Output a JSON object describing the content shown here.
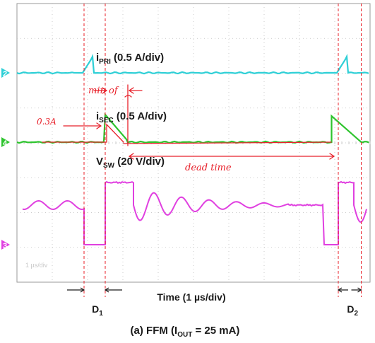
{
  "chart_data": {
    "type": "line",
    "title": "",
    "x_axis_label": "Time (1 µs/div)",
    "x_range_us": [
      0,
      10
    ],
    "grid": true,
    "screen_label": "1 µs/div",
    "channels": [
      {
        "marker": "2",
        "color": "#2ecfd6",
        "label_main": "i",
        "label_sub": "PRI",
        "label_scale": " (0.5 A/div)"
      },
      {
        "marker": "4",
        "color": "#2ec42e",
        "label_main": "i",
        "label_sub": "SEC",
        "label_scale": " (0.5 A/div)"
      },
      {
        "marker": "3",
        "color": "#e040e0",
        "label_main": "V",
        "label_sub": "SW",
        "label_scale": " (20 V/div)"
      }
    ],
    "intervals": [
      {
        "main": "D",
        "sub": "1",
        "start_us": 1.9,
        "end_us": 2.5
      },
      {
        "main": "D",
        "sub": "2",
        "start_us": 9.1,
        "end_us": 9.75
      }
    ],
    "annotations": {
      "min_of": "min of",
      "current": "0.3A",
      "dead_time": "dead time"
    },
    "caption": {
      "prefix": "(a) FFM (I",
      "sub": "OUT",
      "suffix": " = 25 mA)"
    }
  },
  "colors": {
    "background": "#ffffff",
    "grid": "#bfbfbf",
    "annotation": "#e8202a",
    "primary": "#2ecfd6",
    "secondary": "#2ec42e",
    "switch_node": "#e040e0"
  }
}
